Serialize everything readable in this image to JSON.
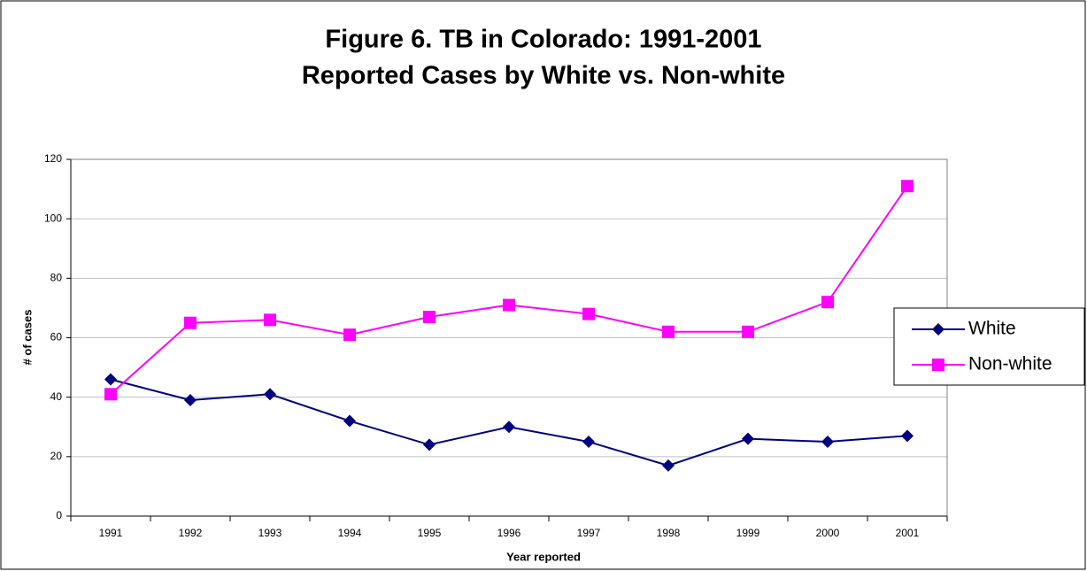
{
  "chart_data": {
    "type": "line",
    "title": "Figure 6.  TB in Colorado:  1991-2001",
    "subtitle": "Reported Cases by White vs. Non-white",
    "x_label": "Year reported",
    "y_label": "# of cases",
    "categories": [
      "1991",
      "1992",
      "1993",
      "1994",
      "1995",
      "1996",
      "1997",
      "1998",
      "1999",
      "2000",
      "2001"
    ],
    "series": [
      {
        "name": "White",
        "color": "#000080",
        "marker": "diamond",
        "values": [
          46,
          39,
          41,
          32,
          24,
          30,
          25,
          17,
          26,
          25,
          27
        ]
      },
      {
        "name": "Non-white",
        "color": "#ff00ff",
        "marker": "square",
        "values": [
          41,
          65,
          66,
          61,
          67,
          71,
          68,
          62,
          62,
          72,
          111
        ]
      }
    ],
    "ylim": [
      0,
      120
    ],
    "yticks": [
      0,
      20,
      40,
      60,
      80,
      100,
      120
    ],
    "grid": true,
    "legend": "right"
  }
}
